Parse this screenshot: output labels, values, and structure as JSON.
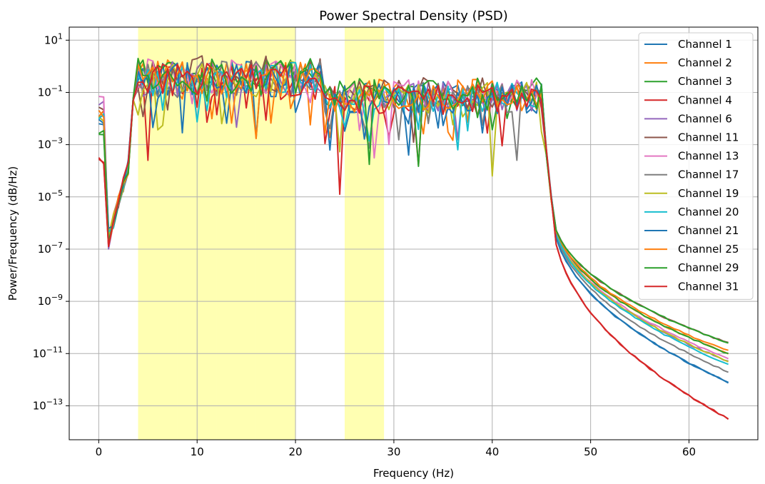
{
  "chart_data": {
    "type": "line",
    "title": "Power Spectral Density (PSD)",
    "xlabel": "Frequency (Hz)",
    "ylabel": "Power/Frequency (dB/Hz)",
    "y_scale": "log",
    "xlim": [
      -3,
      67
    ],
    "ylim_log10": [
      -14.3,
      1.5
    ],
    "grid": true,
    "legend_location": "upper right",
    "x_ticks": [
      0,
      10,
      20,
      30,
      40,
      50,
      60
    ],
    "y_ticks": [
      {
        "exp": 1,
        "label": "10",
        "sup": "1"
      },
      {
        "exp": -1,
        "label": "10",
        "sup": "−1"
      },
      {
        "exp": -3,
        "label": "10",
        "sup": "−3"
      },
      {
        "exp": -5,
        "label": "10",
        "sup": "−5"
      },
      {
        "exp": -7,
        "label": "10",
        "sup": "−7"
      },
      {
        "exp": -9,
        "label": "10",
        "sup": "−9"
      },
      {
        "exp": -11,
        "label": "10",
        "sup": "−11"
      },
      {
        "exp": -13,
        "label": "10",
        "sup": "−13"
      }
    ],
    "highlight_bands": [
      {
        "x0": 4,
        "x1": 8,
        "color": "#ffff00",
        "alpha": 0.3
      },
      {
        "x0": 8,
        "x1": 12,
        "color": "#ffff00",
        "alpha": 0.3
      },
      {
        "x0": 12,
        "x1": 16,
        "color": "#ffff00",
        "alpha": 0.3
      },
      {
        "x0": 16,
        "x1": 20,
        "color": "#ffff00",
        "alpha": 0.3
      },
      {
        "x0": 25,
        "x1": 29,
        "color": "#ffff00",
        "alpha": 0.3
      }
    ],
    "freq_step": 0.5,
    "freq_max": 64,
    "series": [
      {
        "name": "Channel 1",
        "color": "#1f77b4",
        "offset": 0.0,
        "low": -2.5,
        "tail": -12.1
      },
      {
        "name": "Channel 2",
        "color": "#ff7f0e",
        "offset": 0.1,
        "low": -2.2,
        "tail": -11.0
      },
      {
        "name": "Channel 3",
        "color": "#2ca02c",
        "offset": 0.15,
        "low": -3.0,
        "tail": -11.0
      },
      {
        "name": "Channel 4",
        "color": "#d62728",
        "offset": -0.1,
        "low": -4.0,
        "tail": -13.5
      },
      {
        "name": "Channel 6",
        "color": "#9467bd",
        "offset": 0.0,
        "low": -1.8,
        "tail": -11.3
      },
      {
        "name": "Channel 11",
        "color": "#8c564b",
        "offset": 0.2,
        "low": -2.0,
        "tail": -10.6
      },
      {
        "name": "Channel 13",
        "color": "#e377c2",
        "offset": 0.1,
        "low": -1.7,
        "tail": -11.2
      },
      {
        "name": "Channel 17",
        "color": "#7f7f7f",
        "offset": 0.0,
        "low": -2.3,
        "tail": -11.7
      },
      {
        "name": "Channel 19",
        "color": "#bcbd22",
        "offset": 0.0,
        "low": -2.4,
        "tail": -11.3
      },
      {
        "name": "Channel 20",
        "color": "#17becf",
        "offset": 0.0,
        "low": -2.3,
        "tail": -11.4
      },
      {
        "name": "Channel 21",
        "color": "#1f77b4",
        "offset": -0.05,
        "low": -2.6,
        "tail": -12.1
      },
      {
        "name": "Channel 25",
        "color": "#ff7f0e",
        "offset": 0.05,
        "low": -2.2,
        "tail": -10.9
      },
      {
        "name": "Channel 29",
        "color": "#2ca02c",
        "offset": 0.1,
        "low": -2.9,
        "tail": -10.6
      },
      {
        "name": "Channel 31",
        "color": "#d62728",
        "offset": -0.05,
        "low": -4.0,
        "tail": -13.5
      }
    ]
  }
}
